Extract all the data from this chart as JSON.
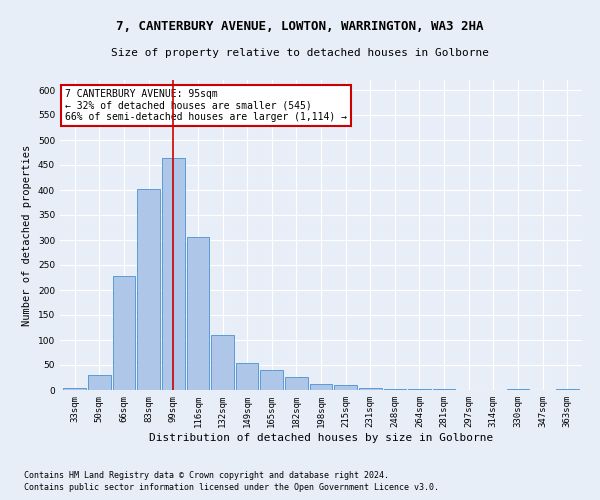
{
  "title1": "7, CANTERBURY AVENUE, LOWTON, WARRINGTON, WA3 2HA",
  "title2": "Size of property relative to detached houses in Golborne",
  "xlabel": "Distribution of detached houses by size in Golborne",
  "ylabel": "Number of detached properties",
  "categories": [
    "33sqm",
    "50sqm",
    "66sqm",
    "83sqm",
    "99sqm",
    "116sqm",
    "132sqm",
    "149sqm",
    "165sqm",
    "182sqm",
    "198sqm",
    "215sqm",
    "231sqm",
    "248sqm",
    "264sqm",
    "281sqm",
    "297sqm",
    "314sqm",
    "330sqm",
    "347sqm",
    "363sqm"
  ],
  "values": [
    5,
    30,
    228,
    402,
    465,
    307,
    111,
    54,
    40,
    26,
    13,
    11,
    5,
    2,
    2,
    2,
    0,
    0,
    3,
    0,
    2
  ],
  "bar_color": "#aec6e8",
  "bar_edge_color": "#5b9bd5",
  "vline_x": 4,
  "annotation_line1": "7 CANTERBURY AVENUE: 95sqm",
  "annotation_line2": "← 32% of detached houses are smaller (545)",
  "annotation_line3": "66% of semi-detached houses are larger (1,114) →",
  "annotation_box_color": "#ffffff",
  "annotation_box_edge": "#cc0000",
  "vline_color": "#cc0000",
  "footnote1": "Contains HM Land Registry data © Crown copyright and database right 2024.",
  "footnote2": "Contains public sector information licensed under the Open Government Licence v3.0.",
  "ylim": [
    0,
    620
  ],
  "background_color": "#e8eef7",
  "grid_color": "#ffffff",
  "title1_fontsize": 9,
  "title2_fontsize": 8,
  "ylabel_fontsize": 7.5,
  "xlabel_fontsize": 8,
  "tick_fontsize": 6.5,
  "annotation_fontsize": 7,
  "footnote_fontsize": 6
}
